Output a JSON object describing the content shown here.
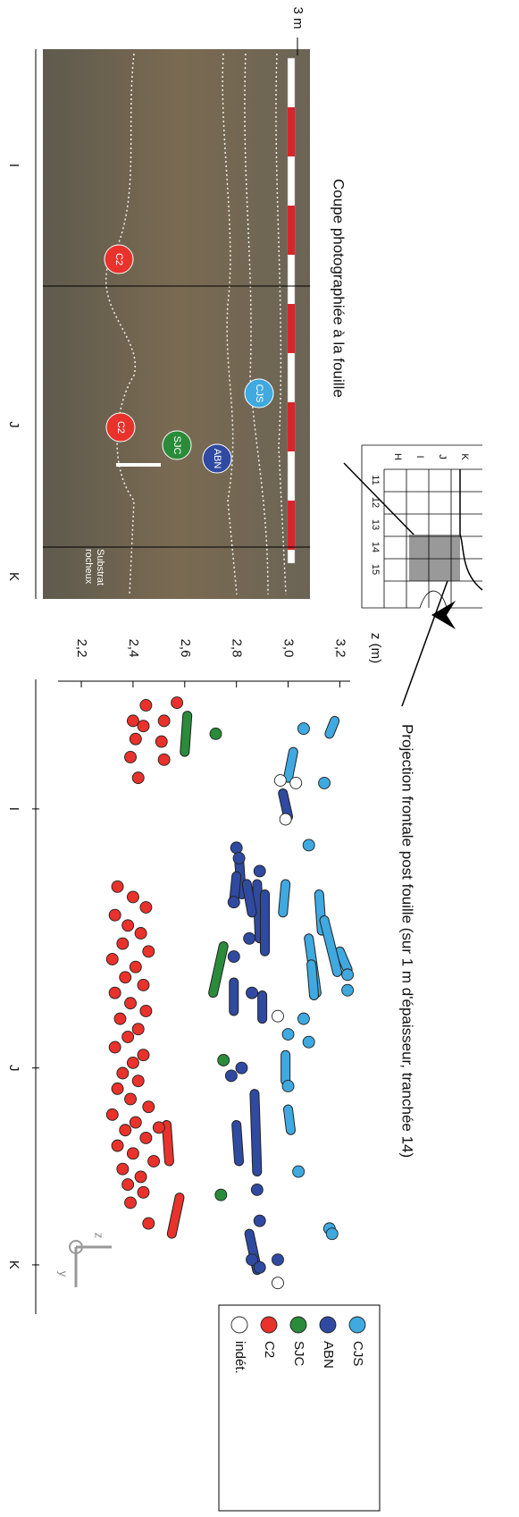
{
  "photo": {
    "caption": "Coupe photographiée à la fouille",
    "scale_label": "3 m",
    "sections": [
      "I",
      "J",
      "K"
    ],
    "markers": [
      "C2",
      "C2",
      "SJC",
      "ABN",
      "CJS"
    ],
    "substrate": [
      "Substrat",
      "rocheux"
    ]
  },
  "inset_map": {
    "rows": [
      "K",
      "J",
      "I",
      "H"
    ],
    "columns": [
      "11",
      "12",
      "13",
      "14",
      "15"
    ]
  },
  "compass": [
    "z",
    "y"
  ],
  "chart_data": {
    "type": "scatter",
    "title": "Projection frontale post fouille (sur 1 m d'épaisseur, tranchée 14)",
    "ylabel": "z (m)",
    "xlim": [
      0,
      2.45
    ],
    "xticks": [
      {
        "value": 0.5,
        "label": "I"
      },
      {
        "value": 1.5,
        "label": "J"
      },
      {
        "value": 2.26,
        "label": "K"
      }
    ],
    "ylim": [
      2.11,
      3.24
    ],
    "yticks": [
      {
        "value": 2.2,
        "label": "2,2"
      },
      {
        "value": 2.4,
        "label": "2,4"
      },
      {
        "value": 2.6,
        "label": "2,6"
      },
      {
        "value": 2.8,
        "label": "2,8"
      },
      {
        "value": 3.0,
        "label": "3,0"
      },
      {
        "value": 3.2,
        "label": "3,2"
      }
    ],
    "legend": "right",
    "series": [
      {
        "name": "CJS",
        "color": "#3fa9e0",
        "x": [
          0.19,
          0.4,
          0.64,
          1.14,
          1.2,
          1.31,
          1.37,
          1.4,
          1.57,
          1.9,
          2.12,
          2.14
        ],
        "values": [
          3.06,
          3.14,
          3.08,
          3.23,
          3.23,
          3.06,
          3.0,
          3.08,
          3.0,
          3.04,
          3.16,
          3.17
        ],
        "segments": [
          [
            0.16,
            3.18,
            0.21,
            3.16
          ],
          [
            0.28,
            3.02,
            0.38,
            3.0
          ],
          [
            0.86,
            2.91,
            1.03,
            2.91
          ],
          [
            0.79,
            2.99,
            0.9,
            2.98
          ],
          [
            1.0,
            3.08,
            1.21,
            3.11
          ],
          [
            1.05,
            3.2,
            1.12,
            3.23
          ],
          [
            1.1,
            3.09,
            1.22,
            3.1
          ],
          [
            1.45,
            2.99,
            1.55,
            2.99
          ],
          [
            1.66,
            3.0,
            1.74,
            3.01
          ],
          [
            0.83,
            3.12,
            0.97,
            3.13
          ],
          [
            0.93,
            3.14,
            1.13,
            3.19
          ]
        ]
      },
      {
        "name": "ABN",
        "color": "#2f4aa0",
        "x": [
          0.65,
          0.69,
          0.74,
          0.86,
          1.0,
          1.07,
          1.21,
          1.53,
          1.5,
          1.97,
          2.09,
          2.24,
          2.24,
          2.27
        ],
        "values": [
          2.8,
          2.81,
          2.89,
          2.79,
          2.85,
          2.79,
          2.86,
          2.78,
          2.82,
          2.88,
          2.89,
          2.86,
          2.96,
          2.89
        ],
        "segments": [
          [
            0.69,
            2.81,
            0.83,
            2.82
          ],
          [
            0.76,
            2.8,
            0.86,
            2.79
          ],
          [
            0.79,
            2.88,
            1.0,
            2.89
          ],
          [
            0.83,
            2.91,
            1.05,
            2.91
          ],
          [
            0.79,
            2.84,
            0.9,
            2.86
          ],
          [
            1.22,
            2.9,
            1.31,
            2.9
          ],
          [
            1.17,
            2.79,
            1.28,
            2.79
          ],
          [
            1.6,
            2.87,
            1.9,
            2.88
          ],
          [
            1.72,
            2.8,
            1.86,
            2.81
          ],
          [
            2.14,
            2.85,
            2.28,
            2.88
          ],
          [
            0.44,
            2.98,
            0.53,
            3.0
          ]
        ]
      },
      {
        "name": "SJC",
        "color": "#2a8b3a",
        "x": [
          0.21,
          1.47,
          1.99
        ],
        "values": [
          2.72,
          2.75,
          2.74
        ],
        "segments": [
          [
            0.14,
            2.61,
            0.28,
            2.6
          ],
          [
            1.03,
            2.75,
            1.21,
            2.71
          ]
        ]
      },
      {
        "name": "C2",
        "color": "#e8322b",
        "x": [
          0.1,
          0.18,
          0.16,
          0.23,
          0.3,
          0.38,
          0.16,
          0.24,
          0.31,
          0.09,
          0.8,
          0.84,
          0.88,
          0.91,
          0.95,
          0.98,
          1.02,
          1.05,
          1.08,
          1.11,
          1.15,
          1.18,
          1.21,
          1.25,
          1.28,
          1.31,
          1.35,
          1.38,
          1.42,
          1.45,
          1.48,
          1.52,
          1.55,
          1.58,
          1.62,
          1.65,
          1.68,
          1.71,
          1.74,
          1.77,
          1.8,
          1.83,
          1.86,
          1.89,
          1.92,
          1.95,
          1.98,
          2.02,
          2.1,
          1.73
        ],
        "values": [
          2.45,
          2.44,
          2.4,
          2.41,
          2.39,
          2.42,
          2.52,
          2.51,
          2.52,
          2.57,
          2.34,
          2.4,
          2.45,
          2.33,
          2.38,
          2.43,
          2.36,
          2.46,
          2.32,
          2.41,
          2.37,
          2.44,
          2.33,
          2.39,
          2.45,
          2.35,
          2.42,
          2.38,
          2.33,
          2.44,
          2.4,
          2.36,
          2.42,
          2.34,
          2.39,
          2.46,
          2.32,
          2.41,
          2.37,
          2.45,
          2.34,
          2.4,
          2.48,
          2.36,
          2.43,
          2.38,
          2.44,
          2.39,
          2.46,
          2.5
        ],
        "segments": [
          [
            1.72,
            2.53,
            1.86,
            2.54
          ],
          [
            2.0,
            2.58,
            2.14,
            2.55
          ]
        ]
      },
      {
        "name": "indét.",
        "color": "#ffffff",
        "x": [
          0.39,
          0.4,
          0.54,
          1.3,
          2.33
        ],
        "values": [
          2.97,
          3.03,
          2.99,
          2.96,
          2.96
        ],
        "segments": []
      }
    ]
  }
}
